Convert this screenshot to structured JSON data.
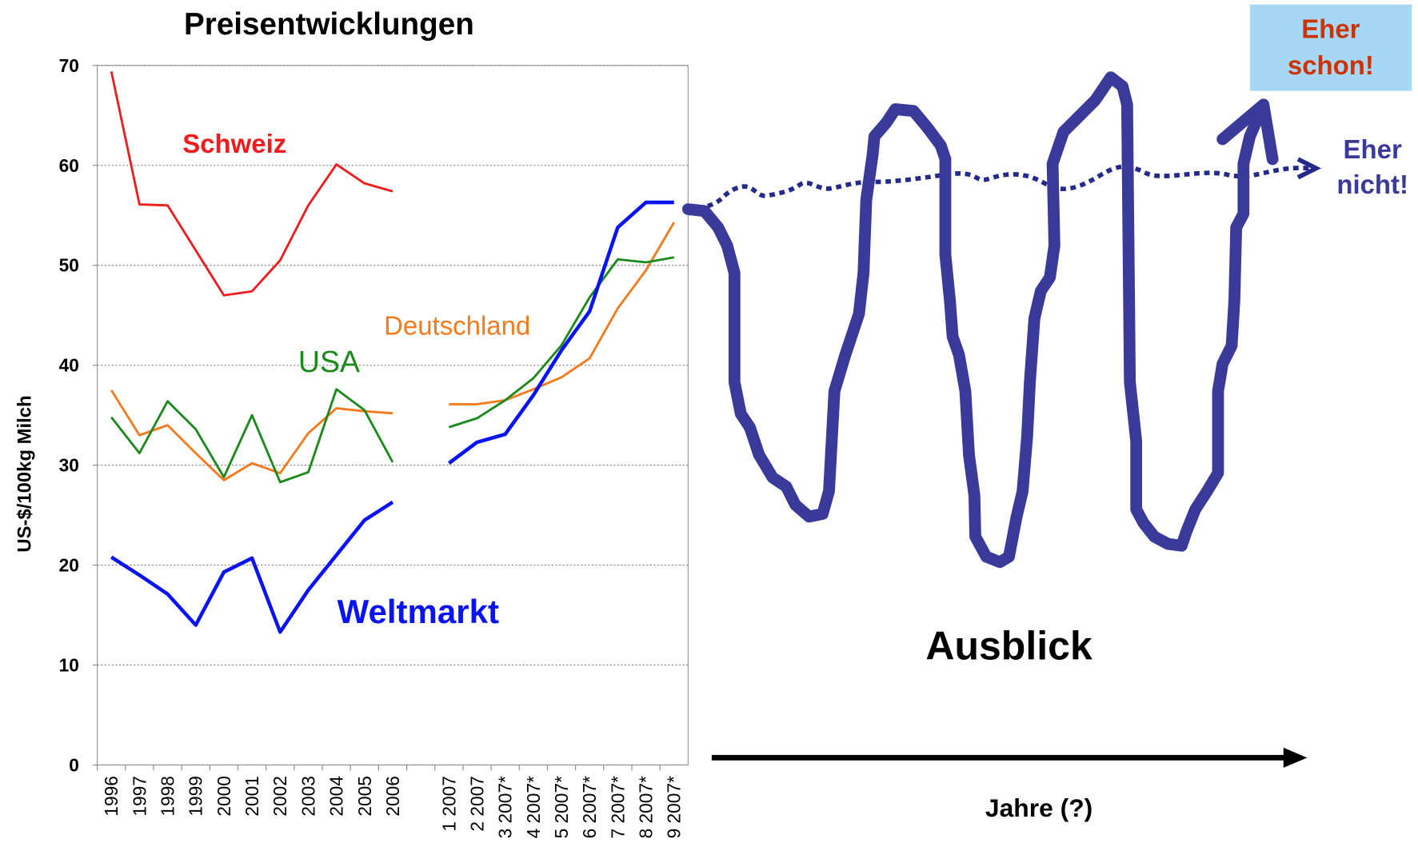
{
  "chart_data": {
    "type": "line",
    "title": "Preisentwicklungen",
    "y_label": "US-$/100kg Milch",
    "categories": [
      "1996",
      "1997",
      "1998",
      "1999",
      "2000",
      "2001",
      "2002",
      "2003",
      "2004",
      "2005",
      "2006",
      null,
      "1 2007",
      "2 2007",
      "3 2007*",
      "4 2007*",
      "5 2007*",
      "6 2007*",
      "7 2007*",
      "8 2007*",
      "9 2007*"
    ],
    "series": [
      {
        "name": "Schweiz",
        "color": "#ee1c1c",
        "values": [
          69.4,
          56.1,
          56.0,
          51.5,
          47.0,
          47.4,
          50.5,
          56.0,
          60.1,
          58.2,
          57.4,
          null,
          null,
          null,
          null,
          null,
          null,
          null,
          null,
          null,
          null
        ]
      },
      {
        "name": "Deutschland",
        "color": "#f47a1b",
        "values": [
          37.5,
          33.0,
          34.0,
          31.2,
          28.5,
          30.2,
          29.2,
          33.2,
          35.7,
          35.4,
          35.2,
          null,
          36.1,
          36.1,
          36.5,
          37.6,
          38.8,
          40.7,
          45.7,
          49.5,
          54.3
        ]
      },
      {
        "name": "USA",
        "color": "#1a8a1a",
        "values": [
          34.8,
          31.2,
          36.4,
          33.6,
          28.8,
          35.0,
          28.3,
          29.3,
          37.6,
          35.5,
          30.3,
          null,
          33.8,
          34.7,
          36.5,
          38.7,
          42.0,
          46.8,
          50.6,
          50.3,
          50.8
        ]
      },
      {
        "name": "Weltmarkt",
        "color": "#0a14f0",
        "values": [
          20.8,
          19.0,
          17.1,
          14.0,
          19.3,
          20.7,
          13.3,
          17.5,
          21.0,
          24.5,
          26.3,
          null,
          30.2,
          32.3,
          33.1,
          37.0,
          41.5,
          45.4,
          53.8,
          56.3,
          56.3
        ]
      }
    ],
    "ylim": [
      0,
      70
    ],
    "yticks": [
      0,
      10,
      20,
      30,
      40,
      50,
      60,
      70
    ],
    "grid": true
  },
  "outlook": {
    "title": "Ausblick",
    "axis_label": "Jahre  (?)",
    "annotations": [
      {
        "lines": [
          "Eher",
          "schon!"
        ],
        "color": "#cc3300",
        "box": "#a6d8f5"
      },
      {
        "lines": [
          "Eher",
          "nicht!"
        ],
        "color": "#3a3a9a"
      }
    ]
  }
}
